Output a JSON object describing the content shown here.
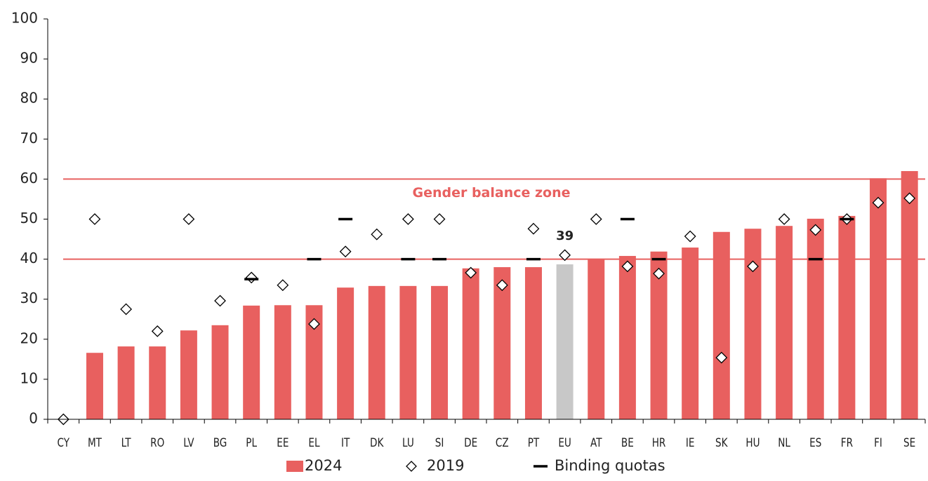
{
  "chart_data": {
    "type": "bar",
    "categories": [
      "CY",
      "MT",
      "LT",
      "RO",
      "LV",
      "BG",
      "PL",
      "EE",
      "EL",
      "IT",
      "DK",
      "LU",
      "SI",
      "DE",
      "CZ",
      "PT",
      "EU",
      "AT",
      "BE",
      "HR",
      "IE",
      "SK",
      "HU",
      "NL",
      "ES",
      "FR",
      "FI",
      "SE"
    ],
    "series": [
      {
        "name": "2024",
        "kind": "bar",
        "color": "#e8605f",
        "colors": [
          "#e8605f",
          "#e8605f",
          "#e8605f",
          "#e8605f",
          "#e8605f",
          "#e8605f",
          "#e8605f",
          "#e8605f",
          "#e8605f",
          "#e8605f",
          "#e8605f",
          "#e8605f",
          "#e8605f",
          "#e8605f",
          "#e8605f",
          "#e8605f",
          "#c8c8c8",
          "#e8605f",
          "#e8605f",
          "#e8605f",
          "#e8605f",
          "#e8605f",
          "#e8605f",
          "#e8605f",
          "#e8605f",
          "#e8605f",
          "#e8605f",
          "#e8605f"
        ],
        "values": [
          0,
          16.6,
          18.2,
          18.2,
          22.2,
          23.5,
          28.4,
          28.5,
          28.5,
          32.9,
          33.3,
          33.3,
          33.3,
          37.7,
          38.0,
          38.0,
          38.7,
          40.1,
          40.8,
          41.9,
          42.9,
          46.8,
          47.6,
          48.3,
          50.1,
          50.8,
          60.2,
          62.0
        ],
        "value_labels": [
          null,
          null,
          null,
          null,
          null,
          null,
          null,
          null,
          null,
          null,
          null,
          null,
          null,
          null,
          null,
          null,
          "39",
          null,
          null,
          null,
          null,
          null,
          null,
          null,
          null,
          null,
          null,
          null
        ]
      },
      {
        "name": "2019",
        "kind": "diamond",
        "color": "#000000",
        "values": [
          0,
          50,
          27.5,
          22,
          50,
          29.6,
          35.4,
          33.5,
          23.8,
          41.9,
          46.2,
          50,
          50,
          36.6,
          33.5,
          47.6,
          41,
          50,
          38.2,
          36.4,
          45.7,
          15.4,
          38.2,
          50,
          47.3,
          50,
          54.1,
          55.2
        ]
      },
      {
        "name": "Binding quotas",
        "kind": "dash",
        "color": "#000000",
        "values": [
          null,
          null,
          null,
          null,
          null,
          null,
          35,
          null,
          40,
          50,
          null,
          40,
          40,
          null,
          null,
          40,
          null,
          null,
          50,
          40,
          null,
          null,
          null,
          null,
          40,
          50,
          null,
          null
        ]
      }
    ],
    "reference_lines": [
      40,
      60
    ],
    "reference_color": "#e8605f",
    "zone_label": "Gender balance zone",
    "ylim": [
      0,
      100
    ],
    "yticks": [
      0,
      10,
      20,
      30,
      40,
      50,
      60,
      70,
      80,
      90,
      100
    ],
    "legend": "bottom"
  }
}
